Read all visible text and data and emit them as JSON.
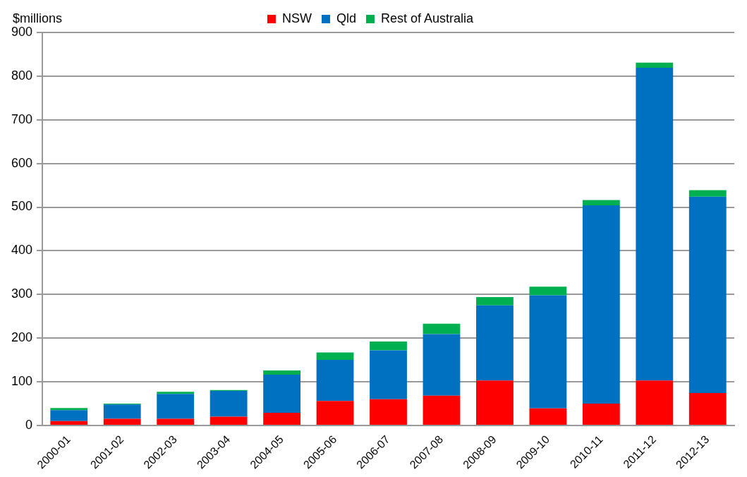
{
  "chart_data": {
    "type": "bar",
    "stacked": true,
    "ylabel": "$millions",
    "categories": [
      "2000-01",
      "2001-02",
      "2002-03",
      "2003-04",
      "2004-05",
      "2005-06",
      "2006-07",
      "2007-08",
      "2008-09",
      "2009-10",
      "2010-11",
      "2011-12",
      "2012-13"
    ],
    "series": [
      {
        "name": "NSW",
        "color": "#ff0000",
        "values": [
          10,
          15,
          15,
          20,
          29,
          56,
          60,
          68,
          103,
          39,
          50,
          103,
          74
        ]
      },
      {
        "name": "Qld",
        "color": "#0070c0",
        "values": [
          25,
          33,
          57,
          59,
          87,
          94,
          112,
          141,
          172,
          259,
          454,
          716,
          450
        ]
      },
      {
        "name": "Rest of Australia",
        "color": "#00b050",
        "values": [
          5,
          2,
          5,
          2,
          10,
          17,
          20,
          24,
          19,
          20,
          12,
          12,
          15
        ]
      }
    ],
    "ylim": [
      0,
      900
    ],
    "yticks": [
      0,
      100,
      200,
      300,
      400,
      500,
      600,
      700,
      800,
      900
    ],
    "grid": "y",
    "legend": "top"
  }
}
